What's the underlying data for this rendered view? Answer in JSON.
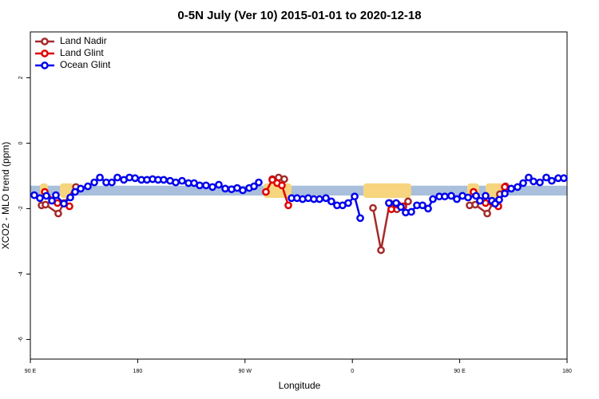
{
  "chart_data": {
    "type": "line",
    "title": "0-5N July (Ver 10)   2015-01-01 to 2020-12-18",
    "xlabel": "Longitude",
    "ylabel": "XCO2 - MLO trend (ppm)",
    "xlim": [
      90,
      540
    ],
    "ylim": [
      -6.6,
      3.4
    ],
    "xticks": [
      {
        "value": 90,
        "label": "90 E"
      },
      180,
      {
        "value": 270,
        "label": "90 W"
      },
      {
        "value": 360,
        "label": "0"
      },
      {
        "value": 450,
        "label": "90 E"
      },
      {
        "value": 540,
        "label": "180"
      }
    ],
    "yticks": [
      2,
      0,
      -2,
      -4,
      -6
    ],
    "band": [
      -1.6,
      -1.3
    ],
    "band_color": "#a9bfdc",
    "land_spans": [
      [
        98,
        104.7
      ],
      [
        114.8,
        126.2
      ],
      [
        285.5,
        309
      ],
      [
        369.2,
        409.4
      ],
      [
        456.3,
        466.3
      ],
      [
        471.7,
        486.4
      ]
    ],
    "land_color": "#f7d57e",
    "legend": "upper left",
    "series": [
      {
        "name": "Land Nadir",
        "color": "#a52a2a",
        "x": [
          99.4,
          102.7,
          113.4,
          118.1,
          128.2,
          200,
          292.9,
          298.2,
          302.9,
          330,
          377.3,
          384.0,
          391.3,
          397.3,
          406.7,
          430,
          458.3,
          463.0,
          473.1,
          477.7,
          483.7,
          488.4
        ],
        "values": [
          -1.9,
          -1.88,
          -2.15,
          -1.83,
          -1.34,
          null,
          -1.1,
          -1.05,
          -1.1,
          null,
          -1.98,
          -3.27,
          -1.83,
          -2.02,
          -1.78,
          null,
          -1.9,
          -1.88,
          -2.15,
          -1.83,
          -1.56,
          -1.32
        ]
      },
      {
        "name": "Land Glint",
        "color": "#e00000",
        "x": [
          102.1,
          112.8,
          122.8,
          200,
          287.5,
          292.9,
          296.9,
          300.9,
          306.3,
          350,
          392.7,
          398.0,
          402.7,
          430,
          461.6,
          471.7,
          482.4,
          487.8
        ],
        "values": [
          -1.49,
          -1.83,
          -1.93,
          null,
          -1.49,
          -1.12,
          -1.22,
          -1.29,
          -1.9,
          null,
          -2.02,
          -1.88,
          -1.93,
          null,
          -1.49,
          -1.83,
          -1.93,
          -1.34
        ]
      },
      {
        "name": "Ocean Glint",
        "color": "#0000ee",
        "x": [
          93.3,
          98.0,
          103.4,
          108.1,
          111.4,
          118.1,
          123.5,
          127.5,
          132.2,
          138.2,
          143.6,
          148.3,
          153.6,
          158.3,
          163.0,
          168.4,
          173.1,
          177.8,
          183.1,
          187.8,
          192.5,
          197.1,
          201.8,
          207.2,
          211.9,
          217.2,
          222.6,
          227.3,
          232.0,
          237.3,
          242.7,
          248.0,
          253.4,
          258.7,
          263.4,
          268.1,
          273.5,
          277.5,
          281.5,
          295,
          309.0,
          313.6,
          318.3,
          323.0,
          327.7,
          332.4,
          337.8,
          342.4,
          347.1,
          351.8,
          356.5,
          361.9,
          366.6,
          378,
          390.6,
          396.7,
          400.7,
          404.7,
          409.4,
          414.1,
          418.8,
          423.5,
          427.5,
          432.9,
          437.5,
          442.9,
          447.6,
          452.3,
          457.0,
          463.7,
          467.0,
          471.7,
          477.0,
          479.7,
          483.1,
          487.8,
          493.2,
          498.5,
          503.2,
          507.8,
          511.9,
          517.2,
          522.6,
          527.2,
          532.6,
          537.3
        ],
        "values": [
          -1.59,
          -1.68,
          -1.61,
          -1.76,
          -1.59,
          -1.85,
          -1.66,
          -1.49,
          -1.39,
          -1.32,
          -1.2,
          -1.05,
          -1.2,
          -1.2,
          -1.05,
          -1.12,
          -1.05,
          -1.07,
          -1.12,
          -1.12,
          -1.1,
          -1.12,
          -1.12,
          -1.15,
          -1.2,
          -1.15,
          -1.22,
          -1.22,
          -1.29,
          -1.29,
          -1.34,
          -1.27,
          -1.39,
          -1.41,
          -1.37,
          -1.44,
          -1.37,
          -1.32,
          -1.2,
          null,
          -1.68,
          -1.68,
          -1.71,
          -1.68,
          -1.71,
          -1.71,
          -1.68,
          -1.78,
          -1.9,
          -1.9,
          -1.83,
          -1.63,
          -2.29,
          null,
          -1.83,
          -1.83,
          -1.95,
          -2.12,
          -2.1,
          -1.9,
          -1.9,
          -2.0,
          -1.71,
          -1.63,
          -1.63,
          -1.61,
          -1.71,
          -1.61,
          -1.66,
          -1.61,
          -1.76,
          -1.61,
          -1.76,
          -1.85,
          -1.73,
          -1.54,
          -1.39,
          -1.34,
          -1.22,
          -1.05,
          -1.17,
          -1.2,
          -1.05,
          -1.15,
          -1.07,
          -1.07
        ]
      }
    ]
  }
}
